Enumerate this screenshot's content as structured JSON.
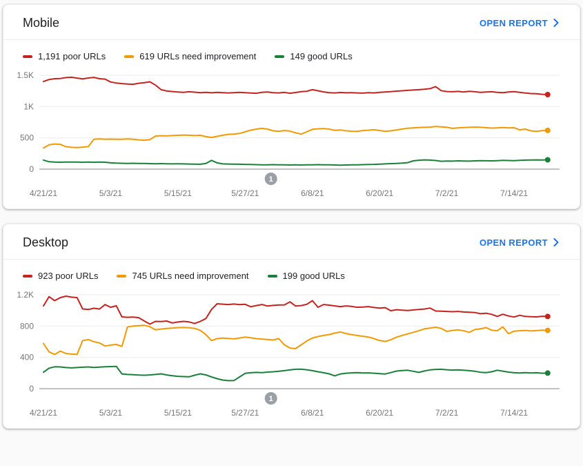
{
  "colors": {
    "poor": "#c5221f",
    "needs_improvement": "#f29900",
    "good": "#188038",
    "link": "#1a73e8",
    "grid": "#ececec",
    "axis": "#80868b",
    "tick_text": "#757575",
    "annotation_marker": "#9aa0a6"
  },
  "cards": [
    {
      "title": "Mobile",
      "open_report_label": "OPEN REPORT",
      "legend": [
        {
          "label": "1,191 poor URLs",
          "color": "#c5221f"
        },
        {
          "label": "619 URLs need improvement",
          "color": "#f29900"
        },
        {
          "label": "149 good URLs",
          "color": "#188038"
        }
      ]
    },
    {
      "title": "Desktop",
      "open_report_label": "OPEN REPORT",
      "legend": [
        {
          "label": "923 poor URLs",
          "color": "#c5221f"
        },
        {
          "label": "745 URLs need improvement",
          "color": "#f29900"
        },
        {
          "label": "199 good URLs",
          "color": "#188038"
        }
      ]
    }
  ],
  "chart_data": [
    {
      "type": "line",
      "device": "Mobile",
      "grid": true,
      "legend_position": "top",
      "x_unit": "days since 4/21/21 (daily points)",
      "y_max": 1500,
      "y_ticks": [
        {
          "value": 0,
          "label": "0"
        },
        {
          "value": 500,
          "label": "500"
        },
        {
          "value": 1000,
          "label": "1K"
        },
        {
          "value": 1500,
          "label": "1.5K"
        }
      ],
      "x_ticks": [
        {
          "day": 0,
          "label": "4/21/21"
        },
        {
          "day": 12,
          "label": "5/3/21"
        },
        {
          "day": 24,
          "label": "5/15/21"
        },
        {
          "day": 36,
          "label": "5/27/21"
        },
        {
          "day": 48,
          "label": "6/8/21"
        },
        {
          "day": 60,
          "label": "6/20/21"
        },
        {
          "day": 72,
          "label": "7/2/21"
        },
        {
          "day": 84,
          "label": "7/14/21"
        }
      ],
      "annotation": {
        "label": "1",
        "day": 40.6
      },
      "series": [
        {
          "name": "poor URLs",
          "key": "poor",
          "color": "#c5221f",
          "current": 1191,
          "values": [
            1400,
            1432,
            1445,
            1448,
            1462,
            1468,
            1455,
            1442,
            1456,
            1466,
            1445,
            1438,
            1392,
            1376,
            1366,
            1360,
            1356,
            1372,
            1382,
            1395,
            1342,
            1270,
            1248,
            1240,
            1232,
            1228,
            1236,
            1230,
            1222,
            1226,
            1220,
            1226,
            1222,
            1218,
            1222,
            1226,
            1222,
            1216,
            1212,
            1228,
            1232,
            1222,
            1218,
            1226,
            1212,
            1224,
            1238,
            1244,
            1270,
            1252,
            1234,
            1222,
            1218,
            1224,
            1220,
            1222,
            1218,
            1214,
            1222,
            1218,
            1226,
            1232,
            1238,
            1246,
            1252,
            1258,
            1264,
            1270,
            1276,
            1286,
            1318,
            1254,
            1240,
            1236,
            1242,
            1232,
            1244,
            1236,
            1228,
            1232,
            1236,
            1228,
            1222,
            1232,
            1238,
            1228,
            1216,
            1208,
            1204,
            1196,
            1191
          ]
        },
        {
          "name": "URLs need improvement",
          "key": "needs-improvement",
          "color": "#f29900",
          "current": 619,
          "values": [
            338,
            388,
            402,
            396,
            358,
            348,
            344,
            352,
            360,
            478,
            482,
            478,
            480,
            476,
            478,
            482,
            478,
            468,
            462,
            472,
            528,
            534,
            530,
            536,
            540,
            545,
            542,
            536,
            540,
            520,
            506,
            524,
            542,
            556,
            560,
            570,
            596,
            622,
            640,
            652,
            640,
            612,
            606,
            616,
            608,
            580,
            560,
            596,
            636,
            644,
            648,
            640,
            620,
            626,
            612,
            606,
            604,
            616,
            622,
            630,
            618,
            604,
            612,
            626,
            640,
            654,
            660,
            664,
            668,
            672,
            680,
            676,
            668,
            652,
            660,
            664,
            668,
            672,
            668,
            662,
            656,
            660,
            664,
            658,
            662,
            628,
            640,
            612,
            604,
            615,
            619
          ]
        },
        {
          "name": "good URLs",
          "key": "good",
          "color": "#188038",
          "current": 149,
          "values": [
            145,
            118,
            112,
            110,
            112,
            114,
            112,
            110,
            112,
            110,
            112,
            110,
            100,
            96,
            94,
            92,
            94,
            92,
            90,
            88,
            86,
            88,
            86,
            84,
            86,
            84,
            82,
            80,
            78,
            90,
            140,
            100,
            84,
            82,
            80,
            78,
            76,
            74,
            72,
            70,
            70,
            72,
            70,
            68,
            66,
            68,
            66,
            68,
            70,
            72,
            70,
            68,
            66,
            64,
            66,
            68,
            70,
            72,
            74,
            76,
            80,
            84,
            88,
            92,
            96,
            104,
            132,
            142,
            148,
            144,
            138,
            126,
            130,
            128,
            132,
            130,
            128,
            132,
            136,
            134,
            132,
            136,
            140,
            138,
            136,
            140,
            144,
            146,
            148,
            146,
            149
          ]
        }
      ]
    },
    {
      "type": "line",
      "device": "Desktop",
      "grid": true,
      "legend_position": "top",
      "x_unit": "days since 4/21/21 (daily points)",
      "y_max": 1200,
      "y_ticks": [
        {
          "value": 0,
          "label": "0"
        },
        {
          "value": 400,
          "label": "400"
        },
        {
          "value": 800,
          "label": "800"
        },
        {
          "value": 1200,
          "label": "1.2K"
        }
      ],
      "x_ticks": [
        {
          "day": 0,
          "label": "4/21/21"
        },
        {
          "day": 12,
          "label": "5/3/21"
        },
        {
          "day": 24,
          "label": "5/15/21"
        },
        {
          "day": 36,
          "label": "5/27/21"
        },
        {
          "day": 48,
          "label": "6/8/21"
        },
        {
          "day": 60,
          "label": "6/20/21"
        },
        {
          "day": 72,
          "label": "7/2/21"
        },
        {
          "day": 84,
          "label": "7/14/21"
        }
      ],
      "annotation": {
        "label": "1",
        "day": 40.6
      },
      "series": [
        {
          "name": "poor URLs",
          "key": "poor",
          "color": "#c5221f",
          "current": 923,
          "values": [
            1058,
            1176,
            1125,
            1164,
            1182,
            1170,
            1164,
            1019,
            1012,
            1028,
            1018,
            1075,
            1040,
            1060,
            918,
            912,
            915,
            908,
            865,
            825,
            860,
            858,
            865,
            840,
            852,
            860,
            853,
            833,
            860,
            897,
            1013,
            1085,
            1080,
            1076,
            1082,
            1074,
            1078,
            1047,
            1062,
            1076,
            1056,
            1064,
            1070,
            1071,
            1110,
            1056,
            1062,
            1078,
            1125,
            1040,
            1076,
            1068,
            1058,
            1049,
            1058,
            1052,
            1040,
            1044,
            1049,
            1038,
            1031,
            1036,
            996,
            1009,
            1004,
            1000,
            1006,
            1013,
            1018,
            1031,
            993,
            990,
            987,
            984,
            987,
            980,
            978,
            973,
            958,
            964,
            950,
            924,
            951,
            929,
            916,
            938,
            924,
            920,
            918,
            926,
            923
          ]
        },
        {
          "name": "URLs need improvement",
          "key": "needs-improvement",
          "color": "#f29900",
          "current": 745,
          "values": [
            578,
            470,
            438,
            480,
            450,
            442,
            438,
            615,
            628,
            600,
            585,
            545,
            558,
            565,
            540,
            788,
            800,
            806,
            810,
            792,
            752,
            762,
            770,
            775,
            780,
            782,
            778,
            770,
            745,
            690,
            615,
            640,
            648,
            642,
            636,
            648,
            660,
            650,
            640,
            634,
            628,
            622,
            640,
            560,
            520,
            512,
            560,
            610,
            648,
            666,
            680,
            692,
            710,
            725,
            705,
            690,
            680,
            670,
            660,
            640,
            615,
            604,
            625,
            658,
            680,
            700,
            720,
            740,
            765,
            775,
            785,
            770,
            732,
            745,
            752,
            740,
            720,
            755,
            765,
            780,
            748,
            740,
            790,
            702,
            735,
            740,
            745,
            738,
            742,
            748,
            745
          ]
        },
        {
          "name": "good URLs",
          "key": "good",
          "color": "#188038",
          "current": 199,
          "values": [
            210,
            262,
            280,
            278,
            270,
            266,
            270,
            274,
            278,
            272,
            276,
            280,
            282,
            285,
            189,
            182,
            178,
            174,
            172,
            176,
            182,
            190,
            176,
            165,
            158,
            154,
            152,
            172,
            190,
            176,
            150,
            128,
            110,
            102,
            104,
            150,
            196,
            204,
            208,
            206,
            212,
            216,
            222,
            230,
            240,
            248,
            250,
            242,
            230,
            216,
            204,
            190,
            164,
            188,
            198,
            202,
            206,
            200,
            202,
            198,
            192,
            188,
            206,
            225,
            231,
            236,
            222,
            208,
            226,
            240,
            246,
            248,
            242,
            238,
            240,
            236,
            230,
            222,
            210,
            206,
            216,
            236,
            224,
            212,
            204,
            200,
            206,
            200,
            204,
            198,
            199
          ]
        }
      ]
    }
  ]
}
